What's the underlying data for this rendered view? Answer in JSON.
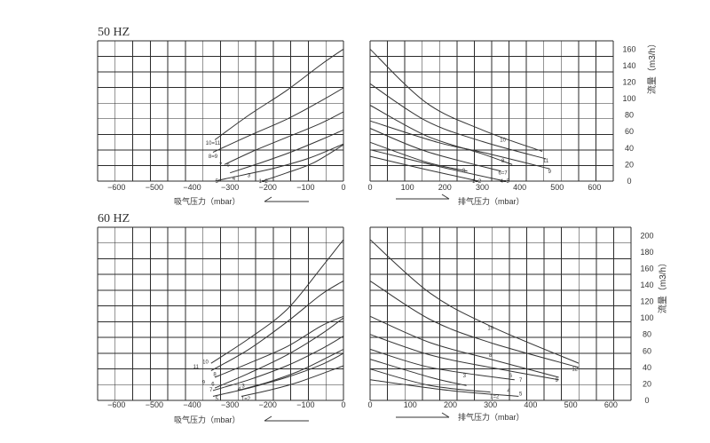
{
  "chart_data": [
    {
      "id": "50hz-suction",
      "type": "line",
      "title": "50 HZ",
      "xlabel": "吸气压力（mbar）",
      "x_ticks": [
        "-600",
        "-500",
        "-400",
        "-300",
        "-200",
        "-100",
        "0"
      ],
      "xlim": [
        -650,
        0
      ],
      "ylim": [
        0,
        170
      ],
      "series": [
        {
          "name": "10=11",
          "x": [
            -340,
            -250,
            -150,
            -60,
            0
          ],
          "y": [
            50,
            80,
            110,
            141,
            160
          ]
        },
        {
          "name": "8=9",
          "x": [
            -345,
            -250,
            -150,
            -60,
            0
          ],
          "y": [
            35,
            55,
            75,
            97,
            113
          ]
        },
        {
          "name": "7 6",
          "x": [
            -315,
            -240,
            -150,
            -60,
            0
          ],
          "y": [
            20,
            36,
            53,
            70,
            84
          ]
        },
        {
          "name": "3 4",
          "x": [
            -300,
            -220,
            -140,
            -60,
            0
          ],
          "y": [
            10,
            22,
            35,
            50,
            62
          ]
        },
        {
          "name": "5",
          "x": [
            -340,
            -260,
            -180,
            -90,
            0
          ],
          "y": [
            0,
            8,
            16,
            28,
            45
          ]
        },
        {
          "name": "1=2",
          "x": [
            -215,
            -150,
            -80,
            0
          ],
          "y": [
            0,
            10,
            22,
            44
          ]
        }
      ],
      "curve_labels": [
        {
          "text": "10=11",
          "x": -345,
          "y": 46
        },
        {
          "text": "8=9",
          "x": -345,
          "y": 30
        },
        {
          "text": "7",
          "x": -325,
          "y": 20
        },
        {
          "text": "6",
          "x": -305,
          "y": 20
        },
        {
          "text": "3",
          "x": -250,
          "y": 7
        },
        {
          "text": "4",
          "x": -290,
          "y": 3
        },
        {
          "text": "5",
          "x": -335,
          "y": 0
        },
        {
          "text": "1=2",
          "x": -212,
          "y": 0
        }
      ]
    },
    {
      "id": "50hz-discharge",
      "type": "line",
      "title": "",
      "xlabel": "排气压力（mbar）",
      "ylabel": "流量（m3/h）",
      "x_ticks": [
        "0",
        "100",
        "200",
        "300",
        "400",
        "500",
        "600"
      ],
      "y_ticks": [
        "0",
        "20",
        "40",
        "60",
        "80",
        "100",
        "120",
        "140",
        "160"
      ],
      "xlim": [
        0,
        650
      ],
      "ylim": [
        0,
        170
      ],
      "series": [
        {
          "name": "10",
          "x": [
            0,
            150,
            300,
            460
          ],
          "y": [
            160,
            95,
            62,
            36
          ]
        },
        {
          "name": "11",
          "x": [
            0,
            150,
            300,
            470
          ],
          "y": [
            118,
            73,
            48,
            27
          ]
        },
        {
          "name": "8",
          "x": [
            0,
            150,
            300,
            380
          ],
          "y": [
            92,
            55,
            33,
            20
          ]
        },
        {
          "name": "9",
          "x": [
            0,
            180,
            300,
            480
          ],
          "y": [
            73,
            47,
            35,
            15
          ]
        },
        {
          "name": "6=7",
          "x": [
            0,
            150,
            350
          ],
          "y": [
            64,
            36,
            12
          ]
        },
        {
          "name": "3",
          "x": [
            0,
            150,
            260
          ],
          "y": [
            47,
            23,
            12
          ]
        },
        {
          "name": "1=2",
          "x": [
            0,
            150,
            290
          ],
          "y": [
            30,
            14,
            0
          ]
        },
        {
          "name": "4=5",
          "x": [
            0,
            200,
            360
          ],
          "y": [
            38,
            16,
            0
          ]
        }
      ],
      "curve_labels": [
        {
          "text": "10",
          "x": 355,
          "y": 50
        },
        {
          "text": "11",
          "x": 470,
          "y": 25
        },
        {
          "text": "8",
          "x": 355,
          "y": 25
        },
        {
          "text": "9",
          "x": 480,
          "y": 12
        },
        {
          "text": "6=7",
          "x": 355,
          "y": 10
        },
        {
          "text": "3",
          "x": 250,
          "y": 13
        },
        {
          "text": "1=2",
          "x": 285,
          "y": 0
        },
        {
          "text": "4=5",
          "x": 360,
          "y": 0
        }
      ]
    },
    {
      "id": "60hz-suction",
      "type": "line",
      "title": "60 HZ",
      "xlabel": "吸气压力（mbar）",
      "x_ticks": [
        "-600",
        "-500",
        "-400",
        "-300",
        "-200",
        "-100",
        "0"
      ],
      "xlim": [
        -650,
        0
      ],
      "ylim": [
        0,
        210
      ],
      "series": [
        {
          "name": "10",
          "x": [
            -350,
            -250,
            -150,
            -60,
            0
          ],
          "y": [
            45,
            75,
            110,
            160,
            195
          ]
        },
        {
          "name": "11",
          "x": [
            -350,
            -250,
            -150,
            -60,
            0
          ],
          "y": [
            36,
            62,
            95,
            128,
            145
          ]
        },
        {
          "name": "8",
          "x": [
            -340,
            -250,
            -150,
            -60,
            0
          ],
          "y": [
            28,
            45,
            65,
            90,
            102
          ]
        },
        {
          "name": "9",
          "x": [
            -340,
            -250,
            -150,
            -60,
            0
          ],
          "y": [
            15,
            33,
            55,
            80,
            100
          ]
        },
        {
          "name": "7 6",
          "x": [
            -345,
            -250,
            -150,
            -60,
            0
          ],
          "y": [
            12,
            25,
            42,
            62,
            78
          ]
        },
        {
          "name": "3 4",
          "x": [
            -280,
            -200,
            -120,
            -60,
            0
          ],
          "y": [
            12,
            22,
            35,
            48,
            62
          ]
        },
        {
          "name": "5",
          "x": [
            -345,
            -250,
            -150,
            -60,
            0
          ],
          "y": [
            5,
            15,
            28,
            43,
            57
          ]
        },
        {
          "name": "1=2",
          "x": [
            -270,
            -200,
            -120,
            0
          ],
          "y": [
            5,
            12,
            22,
            42
          ]
        }
      ],
      "curve_labels": [
        {
          "text": "10",
          "x": -365,
          "y": 47
        },
        {
          "text": "11",
          "x": -390,
          "y": 41
        },
        {
          "text": "8",
          "x": -340,
          "y": 32
        },
        {
          "text": "9",
          "x": -370,
          "y": 22
        },
        {
          "text": "6",
          "x": -345,
          "y": 20
        },
        {
          "text": "7",
          "x": -350,
          "y": 13
        },
        {
          "text": "3",
          "x": -265,
          "y": 18
        },
        {
          "text": "4",
          "x": -275,
          "y": 14
        },
        {
          "text": "5",
          "x": -335,
          "y": 2
        },
        {
          "text": "1=2",
          "x": -258,
          "y": 2
        }
      ]
    },
    {
      "id": "60hz-discharge",
      "type": "line",
      "title": "",
      "xlabel": "排气压力（mbar）",
      "ylabel": "流量（m3/h）",
      "x_ticks": [
        "0",
        "100",
        "200",
        "300",
        "400",
        "500",
        "600"
      ],
      "y_ticks": [
        "0",
        "20",
        "40",
        "60",
        "80",
        "100",
        "120",
        "140",
        "160",
        "180",
        "200"
      ],
      "xlim": [
        0,
        650
      ],
      "ylim": [
        0,
        210
      ],
      "series": [
        {
          "name": "10",
          "x": [
            0,
            150,
            300,
            520
          ],
          "y": [
            195,
            130,
            90,
            45
          ]
        },
        {
          "name": "12",
          "x": [
            0,
            150,
            300,
            520
          ],
          "y": [
            145,
            98,
            70,
            40
          ]
        },
        {
          "name": "8",
          "x": [
            0,
            150,
            300,
            470
          ],
          "y": [
            102,
            70,
            50,
            28
          ]
        },
        {
          "name": "9",
          "x": [
            0,
            150,
            300,
            470
          ],
          "y": [
            80,
            55,
            40,
            25
          ]
        },
        {
          "name": "6 7",
          "x": [
            0,
            150,
            360
          ],
          "y": [
            62,
            40,
            25
          ]
        },
        {
          "name": "3",
          "x": [
            0,
            150,
            240
          ],
          "y": [
            50,
            28,
            18
          ]
        },
        {
          "name": "1=2",
          "x": [
            0,
            150,
            300
          ],
          "y": [
            38,
            18,
            10
          ]
        },
        {
          "name": "4 5",
          "x": [
            0,
            200,
            370
          ],
          "y": [
            25,
            12,
            5
          ]
        }
      ],
      "curve_labels": [
        {
          "text": "10",
          "x": 300,
          "y": 88
        },
        {
          "text": "12",
          "x": 510,
          "y": 38
        },
        {
          "text": "8",
          "x": 300,
          "y": 55
        },
        {
          "text": "9",
          "x": 465,
          "y": 25
        },
        {
          "text": "6",
          "x": 350,
          "y": 30
        },
        {
          "text": "7",
          "x": 375,
          "y": 25
        },
        {
          "text": "3",
          "x": 235,
          "y": 30
        },
        {
          "text": "1=2",
          "x": 310,
          "y": 5
        },
        {
          "text": "4",
          "x": 345,
          "y": 12
        },
        {
          "text": "5",
          "x": 375,
          "y": 8
        }
      ]
    }
  ]
}
